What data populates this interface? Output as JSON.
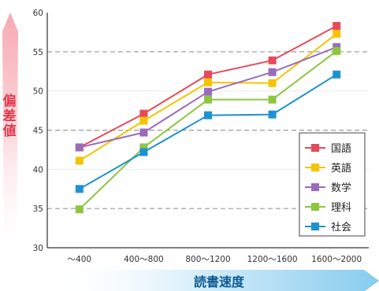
{
  "chart_data": {
    "type": "line",
    "xlabel": "読書速度",
    "ylabel": "偏差値",
    "categories": [
      "～400",
      "400～800",
      "800～1200",
      "1200～1600",
      "1600～2000"
    ],
    "ylim": [
      30,
      60
    ],
    "yticks": [
      30,
      35,
      40,
      45,
      50,
      55,
      60
    ],
    "grid": "horizontal dashed at 35, 45, 55",
    "legend_position": "bottom-right",
    "series": [
      {
        "name": "国語",
        "color": "#e8495a",
        "values": [
          42.8,
          47.1,
          52.1,
          53.9,
          58.3
        ]
      },
      {
        "name": "英語",
        "color": "#f5c400",
        "values": [
          41.1,
          46.2,
          51.1,
          51.0,
          57.3
        ]
      },
      {
        "name": "数学",
        "color": "#9a6bbd",
        "values": [
          42.8,
          44.7,
          49.9,
          52.4,
          55.6
        ]
      },
      {
        "name": "理科",
        "color": "#8cc63f",
        "values": [
          34.9,
          42.8,
          48.9,
          48.9,
          55.1
        ]
      },
      {
        "name": "社会",
        "color": "#1d92d0",
        "values": [
          37.5,
          42.2,
          46.9,
          47.0,
          52.1
        ]
      }
    ]
  }
}
